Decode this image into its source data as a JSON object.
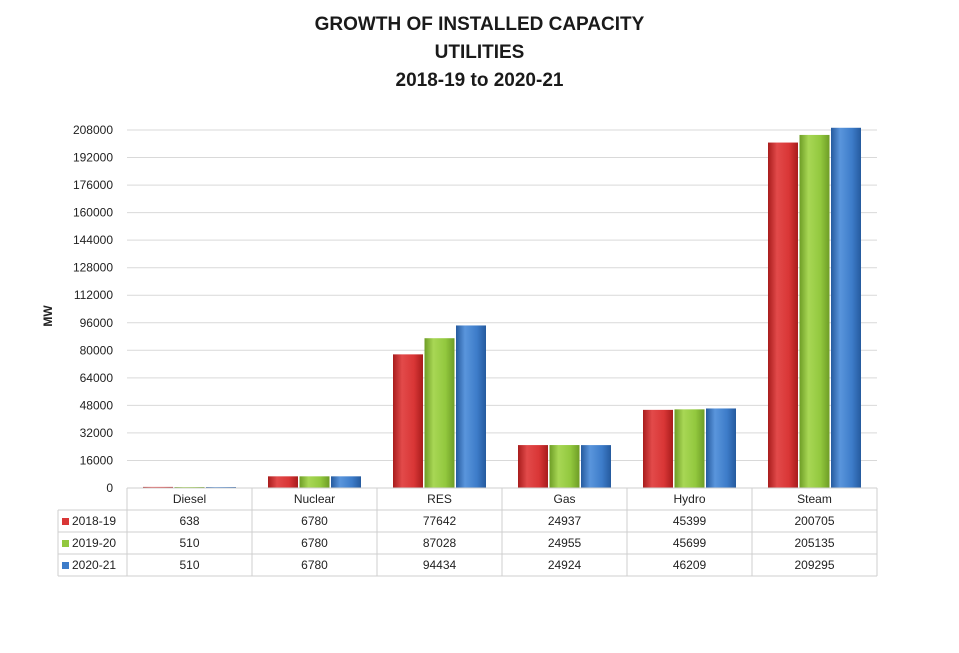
{
  "title_lines": [
    "GROWTH OF INSTALLED CAPACITY",
    "UTILITIES",
    "2018-19 to 2020-21"
  ],
  "chart_data": {
    "type": "bar",
    "title": "GROWTH OF INSTALLED CAPACITY UTILITIES 2018-19 to 2020-21",
    "xlabel": "",
    "ylabel": "MW",
    "ylim": [
      0,
      208000
    ],
    "yticks": [
      0,
      16000,
      32000,
      48000,
      64000,
      80000,
      96000,
      112000,
      128000,
      144000,
      160000,
      176000,
      192000,
      208000
    ],
    "categories": [
      "Diesel",
      "Nuclear",
      "RES",
      "Gas",
      "Hydro",
      "Steam"
    ],
    "series": [
      {
        "name": "2018-19",
        "color": "#d93636",
        "values": [
          638,
          6780,
          77642,
          24937,
          45399,
          200705
        ]
      },
      {
        "name": "2019-20",
        "color": "#92c83e",
        "values": [
          510,
          6780,
          87028,
          24955,
          45699,
          205135
        ]
      },
      {
        "name": "2020-21",
        "color": "#3d7cc9",
        "values": [
          510,
          6780,
          94434,
          24924,
          46209,
          209295
        ]
      }
    ],
    "grid": true,
    "legend": "data-table"
  }
}
